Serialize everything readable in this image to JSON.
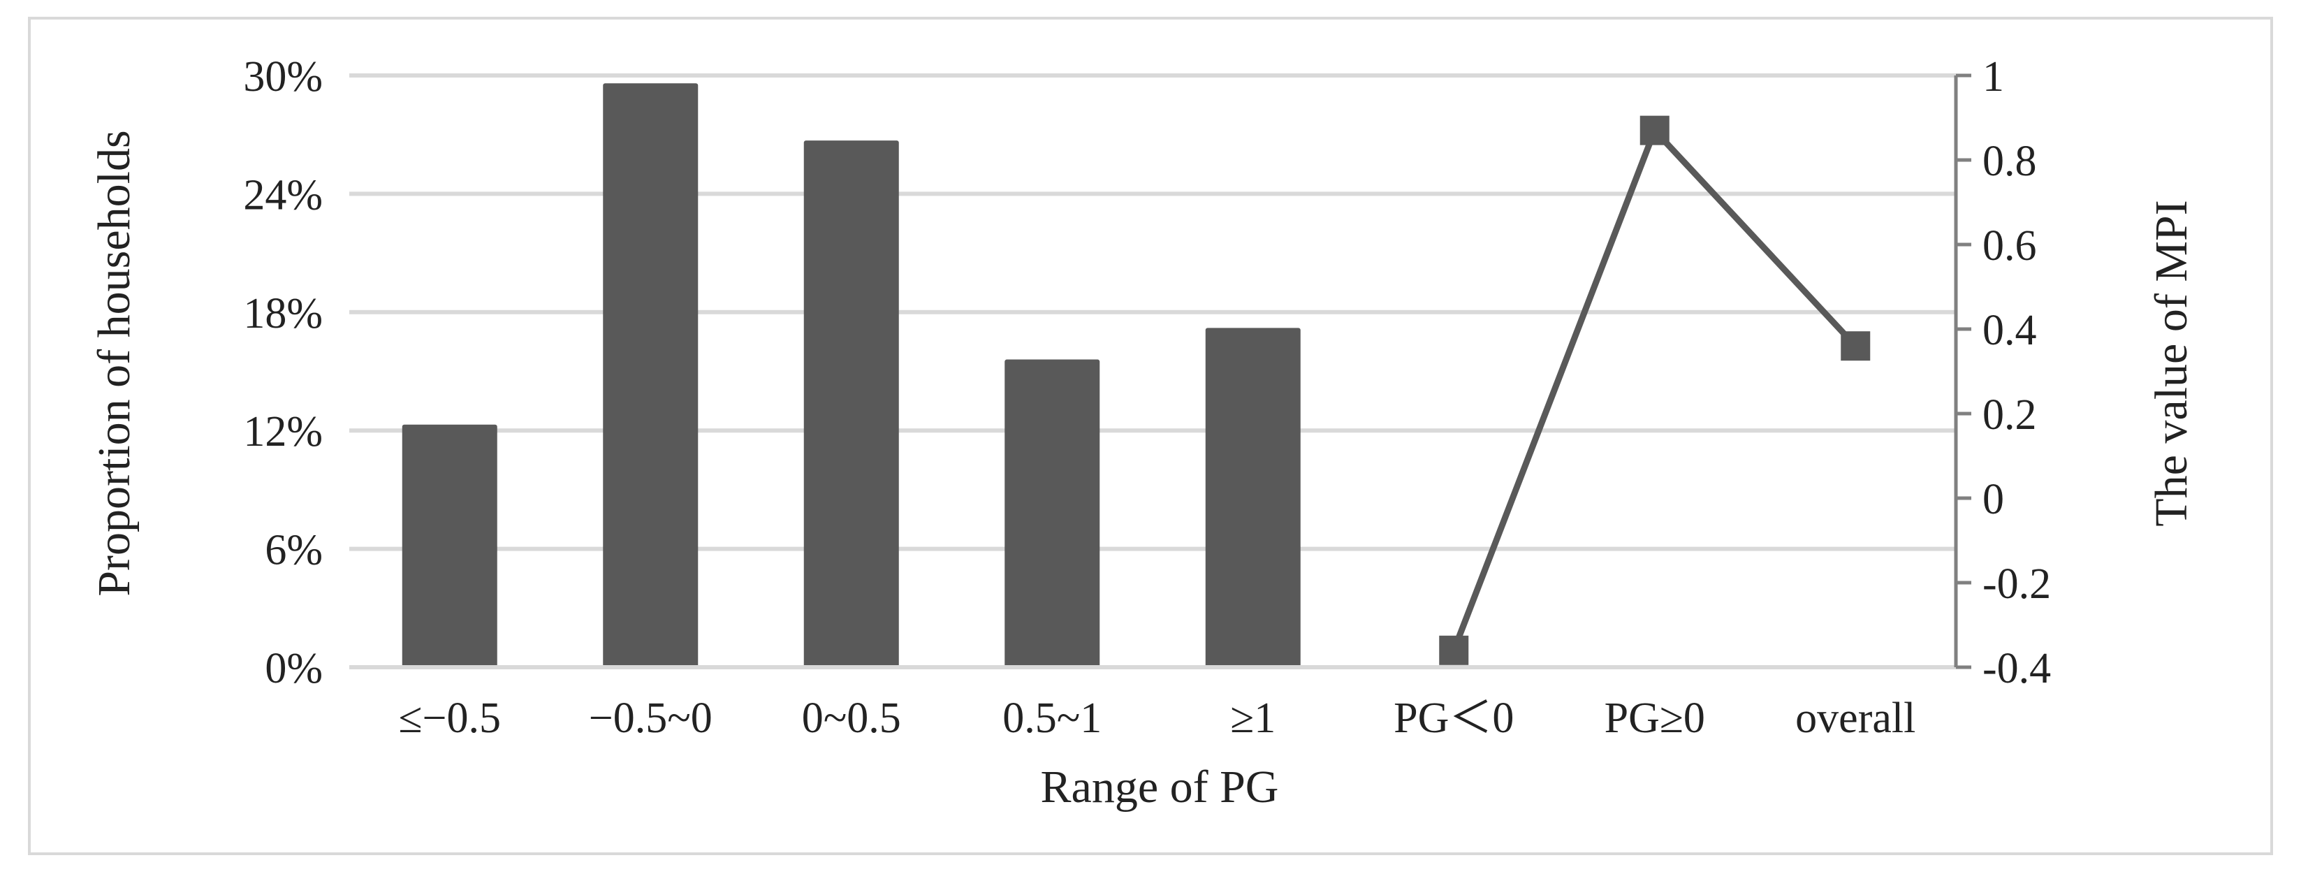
{
  "chart_data": {
    "type": "bar",
    "categories": [
      "≤−0.5",
      "−0.5~0",
      "0~0.5",
      "0.5~1",
      "≥1",
      "PG＜0",
      "PG≥0",
      "overall"
    ],
    "series": [
      {
        "axis": "left",
        "type": "bar",
        "values": [
          12.3,
          29.6,
          26.7,
          15.6,
          17.2,
          null,
          null,
          null
        ]
      },
      {
        "axis": "right",
        "type": "line",
        "values": [
          null,
          null,
          null,
          null,
          null,
          -0.36,
          0.87,
          0.36
        ]
      }
    ],
    "xlabel": "Range of PG",
    "ylabel": "Proportion of  households",
    "y2label": "The value of  MPI",
    "ylim": [
      0,
      30
    ],
    "y2lim": [
      -0.4,
      1
    ],
    "yticks": [
      "0%",
      "6%",
      "12%",
      "18%",
      "24%",
      "30%"
    ],
    "yticks_values": [
      0,
      6,
      12,
      18,
      24,
      30
    ],
    "y2ticks": [
      "-0.4",
      "-0.2",
      "0",
      "0.2",
      "0.4",
      "0.6",
      "0.8",
      "1"
    ],
    "y2ticks_values": [
      -0.4,
      -0.2,
      0,
      0.2,
      0.4,
      0.6,
      0.8,
      1
    ],
    "grid": true,
    "legend": "none",
    "colors": {
      "bar": "#595959",
      "line": "#595959",
      "grid": "#d9d9d9",
      "axis": "#808080"
    }
  }
}
